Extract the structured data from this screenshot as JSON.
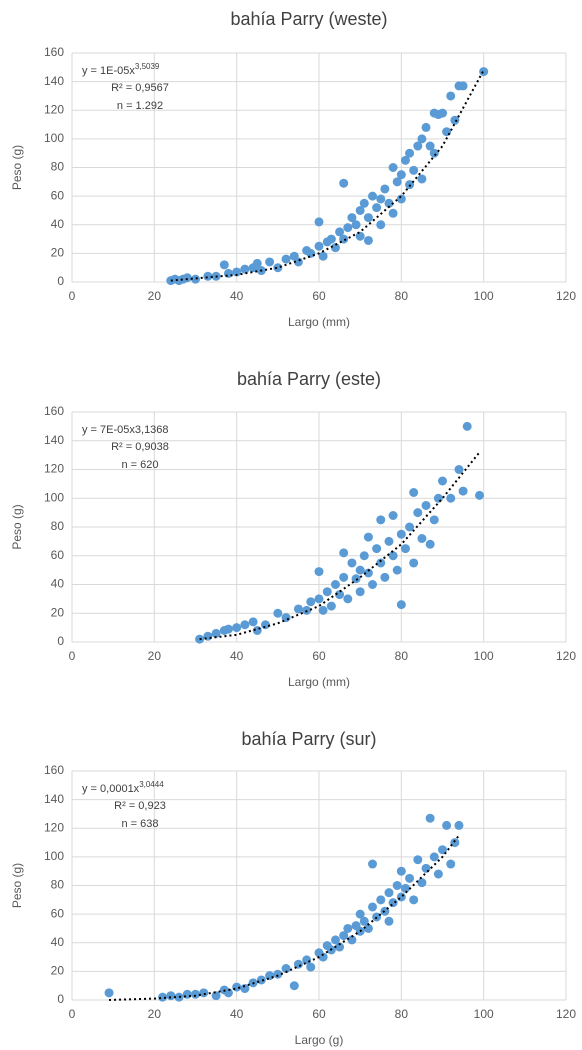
{
  "chart_data": [
    {
      "type": "scatter",
      "title": "bahía Parry (weste)",
      "x_label": "Largo (mm)",
      "y_label": "Peso (g)",
      "equation": "y = 1E-05x",
      "equation_exponent": "3,5039",
      "r2": "R² = 0,9567",
      "n": "n = 1.292",
      "color": "#5b9bd5",
      "trend_color": "#000000",
      "xlim": [
        0,
        120
      ],
      "xticks": [
        0,
        20,
        40,
        60,
        80,
        100,
        120
      ],
      "ylim": [
        0,
        160
      ],
      "yticks": [
        0,
        20,
        40,
        60,
        80,
        100,
        120,
        140,
        160
      ],
      "grid": true,
      "x": [
        24,
        25,
        26,
        27,
        28,
        30,
        33,
        35,
        37,
        38,
        40,
        42,
        44,
        45,
        46,
        48,
        50,
        52,
        54,
        55,
        57,
        58,
        60,
        60,
        61,
        62,
        63,
        64,
        65,
        66,
        66,
        67,
        68,
        69,
        70,
        70,
        71,
        72,
        72,
        73,
        74,
        75,
        75,
        76,
        77,
        78,
        78,
        79,
        80,
        80,
        81,
        82,
        82,
        83,
        84,
        85,
        85,
        86,
        87,
        88,
        88,
        89,
        90,
        91,
        92,
        93,
        94,
        95,
        100
      ],
      "y": [
        1,
        2,
        1,
        2,
        3,
        2,
        4,
        4,
        12,
        6,
        7,
        9,
        10,
        13,
        8,
        14,
        10,
        16,
        18,
        14,
        22,
        20,
        25,
        42,
        18,
        28,
        30,
        24,
        35,
        69,
        30,
        38,
        45,
        40,
        50,
        32,
        55,
        45,
        29,
        60,
        52,
        58,
        40,
        65,
        55,
        80,
        48,
        70,
        75,
        58,
        85,
        68,
        90,
        78,
        95,
        100,
        72,
        108,
        95,
        118,
        90,
        117,
        118,
        105,
        130,
        113,
        137,
        137,
        147
      ],
      "trend_x": [
        24,
        40,
        50,
        60,
        70,
        80,
        90,
        100
      ],
      "trend_y": [
        1,
        5,
        10,
        20,
        35,
        60,
        95,
        148
      ]
    },
    {
      "type": "scatter",
      "title": "bahía Parry (este)",
      "x_label": "Largo (mm)",
      "y_label": "Peso (g)",
      "equation": "y = 7E-05x3,1368",
      "r2": "R² = 0,9038",
      "n": "n = 620",
      "color": "#5b9bd5",
      "trend_color": "#000000",
      "xlim": [
        0,
        120
      ],
      "xticks": [
        0,
        20,
        40,
        60,
        80,
        100,
        120
      ],
      "ylim": [
        0,
        160
      ],
      "yticks": [
        0,
        20,
        40,
        60,
        80,
        100,
        120,
        140,
        160
      ],
      "grid": true,
      "x": [
        31,
        33,
        35,
        37,
        38,
        40,
        42,
        44,
        45,
        47,
        50,
        52,
        55,
        57,
        58,
        60,
        60,
        61,
        62,
        63,
        64,
        65,
        66,
        66,
        67,
        68,
        69,
        70,
        70,
        71,
        72,
        72,
        73,
        74,
        75,
        75,
        76,
        77,
        78,
        78,
        79,
        80,
        80,
        81,
        82,
        83,
        83,
        84,
        85,
        86,
        87,
        88,
        89,
        90,
        92,
        94,
        95,
        96,
        99
      ],
      "y": [
        2,
        4,
        6,
        8,
        9,
        10,
        12,
        14,
        8,
        12,
        20,
        17,
        23,
        22,
        28,
        30,
        49,
        22,
        35,
        25,
        40,
        33,
        62,
        45,
        30,
        55,
        44,
        50,
        35,
        60,
        48,
        73,
        40,
        65,
        55,
        85,
        45,
        70,
        60,
        88,
        50,
        75,
        26,
        65,
        80,
        55,
        104,
        90,
        72,
        95,
        68,
        85,
        100,
        112,
        100,
        120,
        105,
        150,
        102
      ],
      "trend_x": [
        31,
        40,
        50,
        60,
        70,
        80,
        90,
        99
      ],
      "trend_y": [
        2,
        5,
        13,
        25,
        45,
        68,
        100,
        132
      ]
    },
    {
      "type": "scatter",
      "title": "bahía Parry (sur)",
      "x_label": "Largo (g)",
      "y_label": "Peso (g)",
      "equation": "y = 0,0001x",
      "equation_exponent": "3,0444",
      "r2": "R² = 0,923",
      "n": "n = 638",
      "color": "#5b9bd5",
      "trend_color": "#000000",
      "xlim": [
        0,
        120
      ],
      "xticks": [
        0,
        20,
        40,
        60,
        80,
        100,
        120
      ],
      "ylim": [
        0,
        160
      ],
      "yticks": [
        0,
        20,
        40,
        60,
        80,
        100,
        120,
        140,
        160
      ],
      "grid": true,
      "x": [
        9,
        22,
        24,
        26,
        28,
        30,
        32,
        35,
        37,
        38,
        40,
        42,
        44,
        46,
        48,
        50,
        52,
        54,
        55,
        57,
        58,
        60,
        61,
        62,
        63,
        64,
        65,
        66,
        67,
        68,
        69,
        70,
        70,
        71,
        72,
        73,
        73,
        74,
        75,
        76,
        77,
        77,
        78,
        79,
        80,
        80,
        81,
        82,
        83,
        84,
        85,
        86,
        87,
        88,
        89,
        90,
        91,
        92,
        93,
        94
      ],
      "y": [
        5,
        2,
        3,
        2,
        4,
        4,
        5,
        3,
        7,
        5,
        9,
        8,
        12,
        14,
        17,
        18,
        22,
        10,
        25,
        28,
        23,
        33,
        30,
        38,
        35,
        42,
        37,
        45,
        50,
        42,
        52,
        48,
        60,
        55,
        50,
        95,
        65,
        58,
        70,
        62,
        75,
        55,
        68,
        80,
        72,
        90,
        78,
        85,
        70,
        98,
        82,
        92,
        127,
        100,
        88,
        105,
        122,
        95,
        110,
        122
      ],
      "trend_x": [
        9,
        20,
        30,
        40,
        50,
        60,
        70,
        80,
        90,
        94
      ],
      "trend_y": [
        0,
        1,
        3,
        8,
        17,
        30,
        48,
        72,
        100,
        115
      ]
    }
  ]
}
